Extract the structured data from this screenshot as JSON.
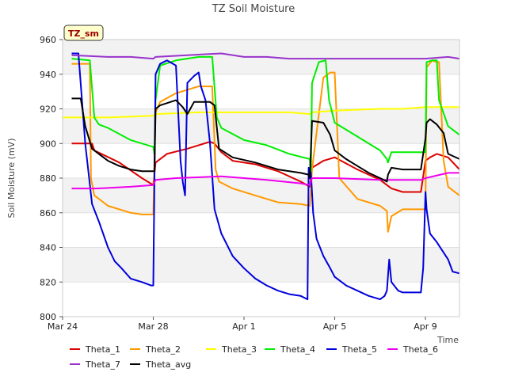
{
  "chart_data": {
    "type": "line",
    "title": "TZ Soil Moisture",
    "xlabel": "Time",
    "ylabel": "Soil Moisture (mV)",
    "badge": "TZ_sm",
    "ylim": [
      800,
      960
    ],
    "yticks": [
      800,
      820,
      840,
      860,
      880,
      900,
      920,
      940,
      960
    ],
    "xlim": [
      0,
      17.5
    ],
    "xticks": [
      {
        "label": "Mar 24",
        "value": 0
      },
      {
        "label": "Mar 28",
        "value": 4
      },
      {
        "label": "Apr 1",
        "value": 8
      },
      {
        "label": "Apr 5",
        "value": 12
      },
      {
        "label": "Apr 9",
        "value": 16
      }
    ],
    "grid": "horizontal alternating bands",
    "legend_position": "bottom",
    "series": [
      {
        "name": "Theta_1",
        "color": "#dd0000",
        "x": [
          0.4,
          1.3,
          1.4,
          2.5,
          3.5,
          4.0,
          4.1,
          4.6,
          5.5,
          6.5,
          6.7,
          7.0,
          7.5,
          8.5,
          9.5,
          10.5,
          10.9,
          11.0,
          11.5,
          12.0,
          13.0,
          14.0,
          14.5,
          15.0,
          15.8,
          16.0,
          16.2,
          16.5,
          17.0,
          17.5
        ],
        "y": [
          900,
          900,
          896,
          889,
          880,
          876,
          889,
          894,
          897,
          901,
          900,
          895,
          890,
          888,
          884,
          878,
          875,
          886,
          890,
          892,
          885,
          879,
          874,
          872,
          872,
          890,
          892,
          894,
          892,
          885
        ]
      },
      {
        "name": "Theta_2",
        "color": "#ff9900",
        "x": [
          0.4,
          1.2,
          1.25,
          1.4,
          2.0,
          3.0,
          3.5,
          4.0,
          4.1,
          4.3,
          5.0,
          6.0,
          6.6,
          6.75,
          6.9,
          7.5,
          8.5,
          9.5,
          10.5,
          10.9,
          11.0,
          11.5,
          11.8,
          12.0,
          12.2,
          13.0,
          14.0,
          14.3,
          14.35,
          14.5,
          15.0,
          15.8,
          16.0,
          16.05,
          16.3,
          16.5,
          16.6,
          16.8,
          17.0,
          17.5
        ],
        "y": [
          946,
          946,
          880,
          870,
          864,
          860,
          859,
          859,
          918,
          924,
          929,
          933,
          933,
          885,
          878,
          874,
          870,
          866,
          865,
          864,
          885,
          938,
          941,
          941,
          880,
          868,
          864,
          861,
          849,
          858,
          862,
          862,
          862,
          944,
          948,
          947,
          947,
          890,
          875,
          870
        ]
      },
      {
        "name": "Theta_3",
        "color": "#ffff00",
        "x": [
          0,
          2.0,
          4.0,
          4.1,
          6.0,
          8.0,
          10.0,
          10.9,
          11.0,
          12.0,
          14.0,
          15.0,
          16.0,
          17.5
        ],
        "y": [
          915,
          915,
          916,
          917,
          918,
          918,
          918,
          917,
          918,
          919,
          920,
          920,
          921,
          921
        ]
      },
      {
        "name": "Theta_4",
        "color": "#00ee00",
        "x": [
          0.4,
          1.2,
          1.4,
          1.6,
          2.0,
          3.0,
          4.0,
          4.05,
          4.1,
          4.3,
          5.0,
          6.0,
          6.6,
          6.8,
          7.0,
          8.0,
          9.0,
          10.0,
          10.9,
          10.95,
          11.0,
          11.3,
          11.6,
          11.75,
          12.0,
          13.0,
          14.0,
          14.3,
          14.35,
          14.5,
          15.0,
          15.8,
          16.0,
          16.05,
          16.3,
          16.5,
          16.6,
          17.0,
          17.5
        ],
        "y": [
          949,
          948,
          915,
          911,
          909,
          902,
          898,
          894,
          925,
          945,
          948,
          950,
          950,
          915,
          909,
          902,
          899,
          894,
          891,
          884,
          935,
          947,
          948,
          925,
          912,
          904,
          896,
          891,
          889,
          895,
          895,
          895,
          895,
          947,
          948,
          948,
          925,
          910,
          905
        ]
      },
      {
        "name": "Theta_5",
        "color": "#0000dd",
        "x": [
          0.4,
          0.7,
          1.0,
          1.3,
          1.6,
          2.0,
          2.3,
          2.6,
          3.0,
          3.5,
          3.9,
          4.0,
          4.1,
          4.3,
          4.6,
          5.0,
          5.2,
          5.3,
          5.4,
          5.5,
          5.8,
          6.0,
          6.1,
          6.3,
          6.5,
          6.7,
          7.0,
          7.5,
          8.0,
          8.5,
          9.0,
          9.5,
          10.0,
          10.5,
          10.8,
          10.85,
          10.95,
          11.05,
          11.2,
          11.5,
          11.8,
          12.0,
          12.5,
          13.0,
          13.5,
          14.0,
          14.2,
          14.3,
          14.4,
          14.5,
          14.8,
          15.0,
          15.5,
          15.8,
          15.9,
          16.0,
          16.05,
          16.2,
          16.5,
          17.0,
          17.2,
          17.5
        ],
        "y": [
          952,
          952,
          900,
          865,
          855,
          840,
          832,
          828,
          822,
          820,
          818,
          818,
          940,
          946,
          948,
          945,
          890,
          878,
          870,
          935,
          939,
          941,
          933,
          925,
          900,
          862,
          848,
          835,
          828,
          822,
          818,
          815,
          813,
          812,
          810,
          886,
          883,
          860,
          845,
          835,
          828,
          823,
          818,
          815,
          812,
          810,
          812,
          815,
          833,
          820,
          815,
          814,
          814,
          814,
          828,
          872,
          862,
          848,
          843,
          833,
          826,
          825
        ]
      },
      {
        "name": "Theta_6",
        "color": "#ee00ee",
        "x": [
          0.4,
          1.5,
          3.0,
          4.0,
          4.1,
          5.0,
          7.0,
          9.0,
          10.5,
          10.9,
          11.0,
          12.0,
          14.0,
          15.8,
          16.0,
          17.0,
          17.5
        ],
        "y": [
          874,
          874,
          875,
          876,
          879,
          880,
          881,
          879,
          877,
          876,
          880,
          880,
          879,
          879,
          880,
          883,
          883
        ]
      },
      {
        "name": "Theta_7",
        "color": "#9933cc",
        "x": [
          0.4,
          2.0,
          3.0,
          4.0,
          4.1,
          5.5,
          7.0,
          8.0,
          9.0,
          10.0,
          11.0,
          12.0,
          14.0,
          15.0,
          16.0,
          17.0,
          17.5
        ],
        "y": [
          951,
          950,
          950,
          949,
          950,
          951,
          952,
          950,
          950,
          949,
          949,
          949,
          949,
          949,
          949,
          950,
          949
        ]
      },
      {
        "name": "Theta_avg",
        "color": "#000000",
        "x": [
          0.4,
          0.8,
          1.0,
          1.3,
          1.6,
          2.0,
          2.5,
          3.0,
          3.5,
          4.0,
          4.05,
          4.1,
          4.3,
          5.0,
          5.3,
          5.5,
          5.8,
          6.5,
          6.7,
          6.9,
          7.5,
          8.5,
          9.5,
          10.5,
          10.85,
          10.9,
          11.0,
          11.5,
          11.8,
          12.0,
          12.5,
          13.0,
          13.5,
          14.0,
          14.3,
          14.35,
          14.5,
          15.0,
          15.8,
          16.0,
          16.05,
          16.2,
          16.5,
          16.8,
          17.0,
          17.5
        ],
        "y": [
          926,
          926,
          910,
          897,
          894,
          890,
          887,
          885,
          884,
          884,
          884,
          920,
          922,
          925,
          921,
          917,
          924,
          924,
          922,
          897,
          892,
          889,
          885,
          883,
          882,
          880,
          913,
          912,
          905,
          896,
          891,
          887,
          883,
          880,
          878,
          882,
          886,
          885,
          885,
          903,
          912,
          914,
          911,
          906,
          894,
          891
        ]
      }
    ]
  }
}
